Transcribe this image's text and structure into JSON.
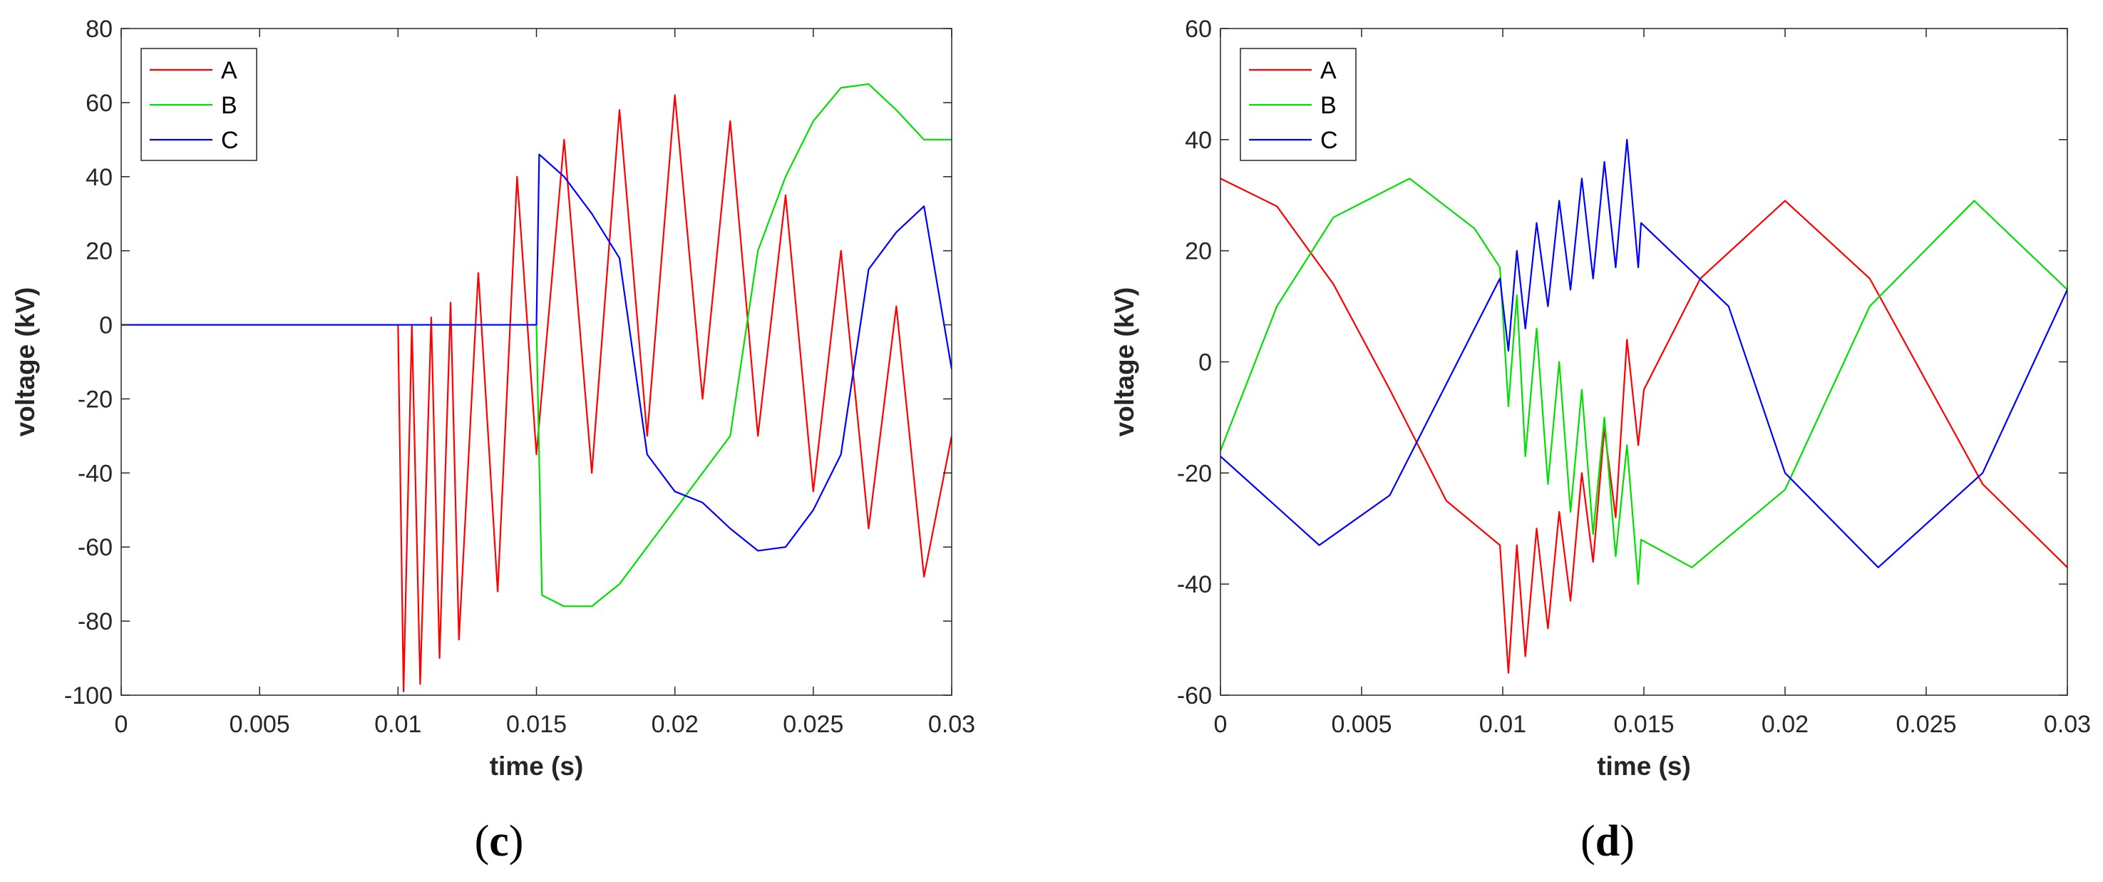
{
  "colors": {
    "A": "#ff0000",
    "B": "#00e000",
    "C": "#0000ff",
    "axis": "#262626"
  },
  "chart_data": [
    {
      "type": "line",
      "panel_label": {
        "open": "(",
        "letter": "c",
        "close": ")"
      },
      "xlabel": "time (s)",
      "ylabel": "voltage (kV)",
      "xlim": [
        0,
        0.03
      ],
      "ylim": [
        -100,
        80
      ],
      "xticks": [
        0,
        0.005,
        0.01,
        0.015,
        0.02,
        0.025,
        0.03
      ],
      "xtick_labels": [
        "0",
        "0.005",
        "0.01",
        "0.015",
        "0.02",
        "0.025",
        "0.03"
      ],
      "yticks": [
        -100,
        -80,
        -60,
        -40,
        -20,
        0,
        20,
        40,
        60,
        80
      ],
      "ytick_labels": [
        "-100",
        "-80",
        "-60",
        "-40",
        "-20",
        "0",
        "20",
        "40",
        "60",
        "80"
      ],
      "legend_position": "top-left",
      "series": [
        {
          "name": "A",
          "color": "#ff0000",
          "points": [
            [
              0,
              0
            ],
            [
              0.01,
              0
            ],
            [
              0.0102,
              -99
            ],
            [
              0.0105,
              0
            ],
            [
              0.0108,
              -97
            ],
            [
              0.0112,
              2
            ],
            [
              0.0115,
              -90
            ],
            [
              0.0119,
              6
            ],
            [
              0.0122,
              -85
            ],
            [
              0.0129,
              14
            ],
            [
              0.0136,
              -72
            ],
            [
              0.0143,
              40
            ],
            [
              0.015,
              -35
            ],
            [
              0.016,
              50
            ],
            [
              0.017,
              -40
            ],
            [
              0.018,
              58
            ],
            [
              0.019,
              -30
            ],
            [
              0.02,
              62
            ],
            [
              0.021,
              -20
            ],
            [
              0.022,
              55
            ],
            [
              0.023,
              -30
            ],
            [
              0.024,
              35
            ],
            [
              0.025,
              -45
            ],
            [
              0.026,
              20
            ],
            [
              0.027,
              -55
            ],
            [
              0.028,
              5
            ],
            [
              0.029,
              -68
            ],
            [
              0.03,
              -30
            ]
          ]
        },
        {
          "name": "B",
          "color": "#00e000",
          "points": [
            [
              0,
              0
            ],
            [
              0.015,
              0
            ],
            [
              0.0152,
              -73
            ],
            [
              0.016,
              -76
            ],
            [
              0.017,
              -76
            ],
            [
              0.018,
              -70
            ],
            [
              0.019,
              -60
            ],
            [
              0.02,
              -50
            ],
            [
              0.021,
              -40
            ],
            [
              0.022,
              -30
            ],
            [
              0.023,
              20
            ],
            [
              0.024,
              40
            ],
            [
              0.025,
              55
            ],
            [
              0.026,
              64
            ],
            [
              0.027,
              65
            ],
            [
              0.028,
              58
            ],
            [
              0.029,
              50
            ],
            [
              0.03,
              50
            ]
          ]
        },
        {
          "name": "C",
          "color": "#0000ff",
          "points": [
            [
              0,
              0
            ],
            [
              0.015,
              0
            ],
            [
              0.0151,
              46
            ],
            [
              0.016,
              40
            ],
            [
              0.017,
              30
            ],
            [
              0.018,
              18
            ],
            [
              0.019,
              -35
            ],
            [
              0.02,
              -45
            ],
            [
              0.021,
              -48
            ],
            [
              0.022,
              -55
            ],
            [
              0.023,
              -61
            ],
            [
              0.024,
              -60
            ],
            [
              0.025,
              -50
            ],
            [
              0.026,
              -35
            ],
            [
              0.027,
              15
            ],
            [
              0.028,
              25
            ],
            [
              0.029,
              32
            ],
            [
              0.03,
              -12
            ]
          ]
        }
      ]
    },
    {
      "type": "line",
      "panel_label": {
        "open": "(",
        "letter": "d",
        "close": ")"
      },
      "xlabel": "time (s)",
      "ylabel": "voltage (kV)",
      "xlim": [
        0,
        0.03
      ],
      "ylim": [
        -60,
        60
      ],
      "xticks": [
        0,
        0.005,
        0.01,
        0.015,
        0.02,
        0.025,
        0.03
      ],
      "xtick_labels": [
        "0",
        "0.005",
        "0.01",
        "0.015",
        "0.02",
        "0.025",
        "0.03"
      ],
      "yticks": [
        -60,
        -40,
        -20,
        0,
        20,
        40,
        60
      ],
      "ytick_labels": [
        "-60",
        "-40",
        "-20",
        "0",
        "20",
        "40",
        "60"
      ],
      "legend_position": "top-left",
      "series": [
        {
          "name": "A",
          "color": "#ff0000",
          "points": [
            [
              0,
              33
            ],
            [
              0.002,
              28
            ],
            [
              0.004,
              14
            ],
            [
              0.006,
              -5
            ],
            [
              0.008,
              -25
            ],
            [
              0.0099,
              -33
            ],
            [
              0.0102,
              -56
            ],
            [
              0.0105,
              -33
            ],
            [
              0.0108,
              -53
            ],
            [
              0.0112,
              -30
            ],
            [
              0.0116,
              -48
            ],
            [
              0.012,
              -27
            ],
            [
              0.0124,
              -43
            ],
            [
              0.0128,
              -20
            ],
            [
              0.0132,
              -36
            ],
            [
              0.0136,
              -12
            ],
            [
              0.014,
              -28
            ],
            [
              0.0144,
              4
            ],
            [
              0.0148,
              -15
            ],
            [
              0.015,
              -5
            ],
            [
              0.017,
              15
            ],
            [
              0.02,
              29
            ],
            [
              0.023,
              15
            ],
            [
              0.027,
              -22
            ],
            [
              0.03,
              -37
            ]
          ]
        },
        {
          "name": "B",
          "color": "#00e000",
          "points": [
            [
              0,
              -16
            ],
            [
              0.002,
              10
            ],
            [
              0.004,
              26
            ],
            [
              0.0067,
              33
            ],
            [
              0.009,
              24
            ],
            [
              0.0099,
              17
            ],
            [
              0.0102,
              -8
            ],
            [
              0.0105,
              12
            ],
            [
              0.0108,
              -17
            ],
            [
              0.0112,
              6
            ],
            [
              0.0116,
              -22
            ],
            [
              0.012,
              0
            ],
            [
              0.0124,
              -27
            ],
            [
              0.0128,
              -5
            ],
            [
              0.0132,
              -31
            ],
            [
              0.0136,
              -10
            ],
            [
              0.014,
              -35
            ],
            [
              0.0144,
              -15
            ],
            [
              0.0148,
              -40
            ],
            [
              0.0149,
              -32
            ],
            [
              0.0167,
              -37
            ],
            [
              0.02,
              -23
            ],
            [
              0.023,
              10
            ],
            [
              0.0267,
              29
            ],
            [
              0.03,
              13
            ]
          ]
        },
        {
          "name": "C",
          "color": "#0000ff",
          "points": [
            [
              0,
              -17
            ],
            [
              0.0035,
              -33
            ],
            [
              0.006,
              -24
            ],
            [
              0.008,
              -4
            ],
            [
              0.0099,
              15
            ],
            [
              0.0102,
              2
            ],
            [
              0.0105,
              20
            ],
            [
              0.0108,
              6
            ],
            [
              0.0112,
              25
            ],
            [
              0.0116,
              10
            ],
            [
              0.012,
              29
            ],
            [
              0.0124,
              13
            ],
            [
              0.0128,
              33
            ],
            [
              0.0132,
              15
            ],
            [
              0.0136,
              36
            ],
            [
              0.014,
              17
            ],
            [
              0.0144,
              40
            ],
            [
              0.0148,
              17
            ],
            [
              0.0149,
              25
            ],
            [
              0.018,
              10
            ],
            [
              0.02,
              -20
            ],
            [
              0.0233,
              -37
            ],
            [
              0.027,
              -20
            ],
            [
              0.03,
              13
            ]
          ]
        }
      ]
    }
  ]
}
